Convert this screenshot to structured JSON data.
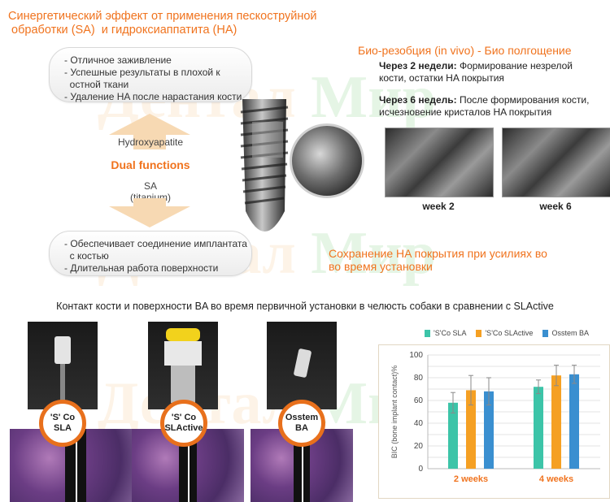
{
  "title_line1": "Синергетический эффект от применения пескоструйной",
  "title_line2": " обработки (SA)  и гидроксиаппатита (HA)",
  "top_pill": [
    "- Отличное заживление",
    "- Успешные результаты в плохой к",
    "  остной ткани",
    "- Удаление HA после нарастания кости"
  ],
  "hydroxyapatite": "Hydroxyapatite",
  "dual_functions": "Dual functions",
  "sa_label": "SA",
  "titanium_label": "(titanium)",
  "bottom_pill": [
    "- Обеспечивает соединение имплантата",
    "  с костью",
    "- Длительная работа поверхности"
  ],
  "bio_title": "Био-резобция (in vivo) - Био полгощение",
  "week2_head": "Через 2 недели:",
  "week2_text": " Формирование незрелой",
  "week2_text2": "кости, остатки HA покрытия",
  "week6_head": "Через 6 недель:",
  "week6_text": " После формирования кости,",
  "week6_text2": "исчезновение кристалов HA покрытия",
  "week2_label": "week 2",
  "week6_label": "week 6",
  "preserve_line1": "Сохранение HA покрытия при усилиях во",
  "preserve_line2": "во время установки",
  "contact_title": "Контакт кости и поверхности BA во время первичной установки в челюсть собаки в сравнении с SLActive",
  "circles": [
    {
      "l1": "'S' Co",
      "l2": "SLA"
    },
    {
      "l1": "'S' Co",
      "l2": "SLActive"
    },
    {
      "l1": "Osstem",
      "l2": "BA"
    }
  ],
  "watermark": {
    "w1": "Дентал",
    "w2": "Мир"
  },
  "colors": {
    "orange": "#f0731e",
    "teal": "#3cc4a8",
    "orange_bar": "#f5a023",
    "blue": "#3a8fd0"
  },
  "chart_data": {
    "type": "bar",
    "categories": [
      "2 weeks",
      "4 weeks"
    ],
    "ylabel": "BIC (bone implant contact)%",
    "ylim": [
      0,
      100
    ],
    "yticks": [
      "0",
      "10",
      "20",
      "30",
      "40",
      "50",
      "60",
      "70",
      "80",
      "90",
      "100"
    ],
    "series": [
      {
        "name": "'S'Co SLA",
        "values": [
          58,
          72
        ],
        "err": [
          9,
          6
        ]
      },
      {
        "name": "'S'Co SLActive",
        "values": [
          69,
          82
        ],
        "err": [
          13,
          9
        ]
      },
      {
        "name": "Osstem BA",
        "values": [
          68,
          83
        ],
        "err": [
          12,
          8
        ]
      }
    ]
  }
}
